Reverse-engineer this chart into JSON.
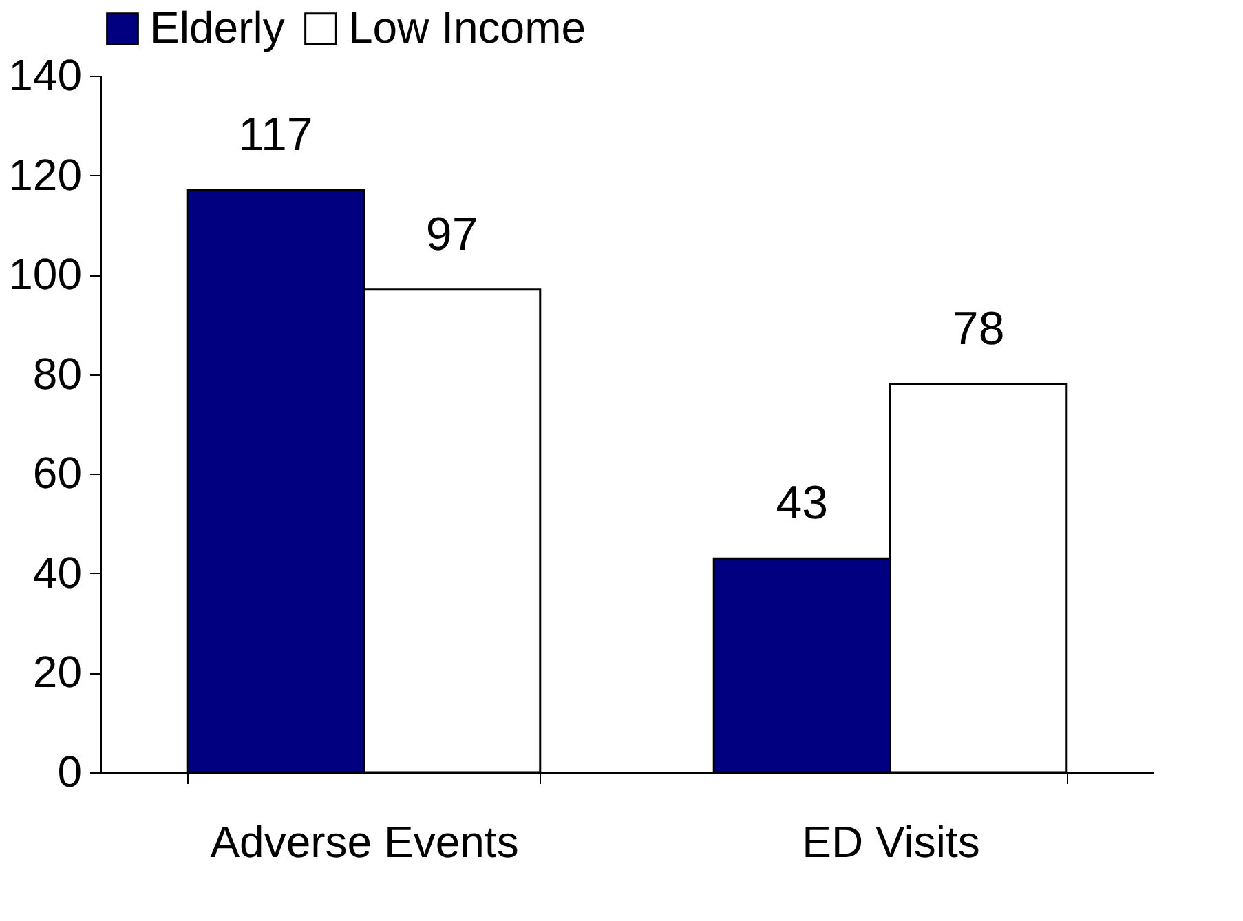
{
  "chart_data": {
    "type": "bar",
    "categories": [
      "Adverse Events",
      "ED Visits"
    ],
    "series": [
      {
        "name": "Elderly",
        "color": "#000080",
        "values": [
          117,
          43
        ]
      },
      {
        "name": "Low Income",
        "color": "#ffffff",
        "values": [
          97,
          78
        ]
      }
    ],
    "ylim": [
      0,
      140
    ],
    "yticks": [
      0,
      20,
      40,
      60,
      80,
      100,
      120,
      140
    ],
    "data_labels": true,
    "legend": "top"
  }
}
